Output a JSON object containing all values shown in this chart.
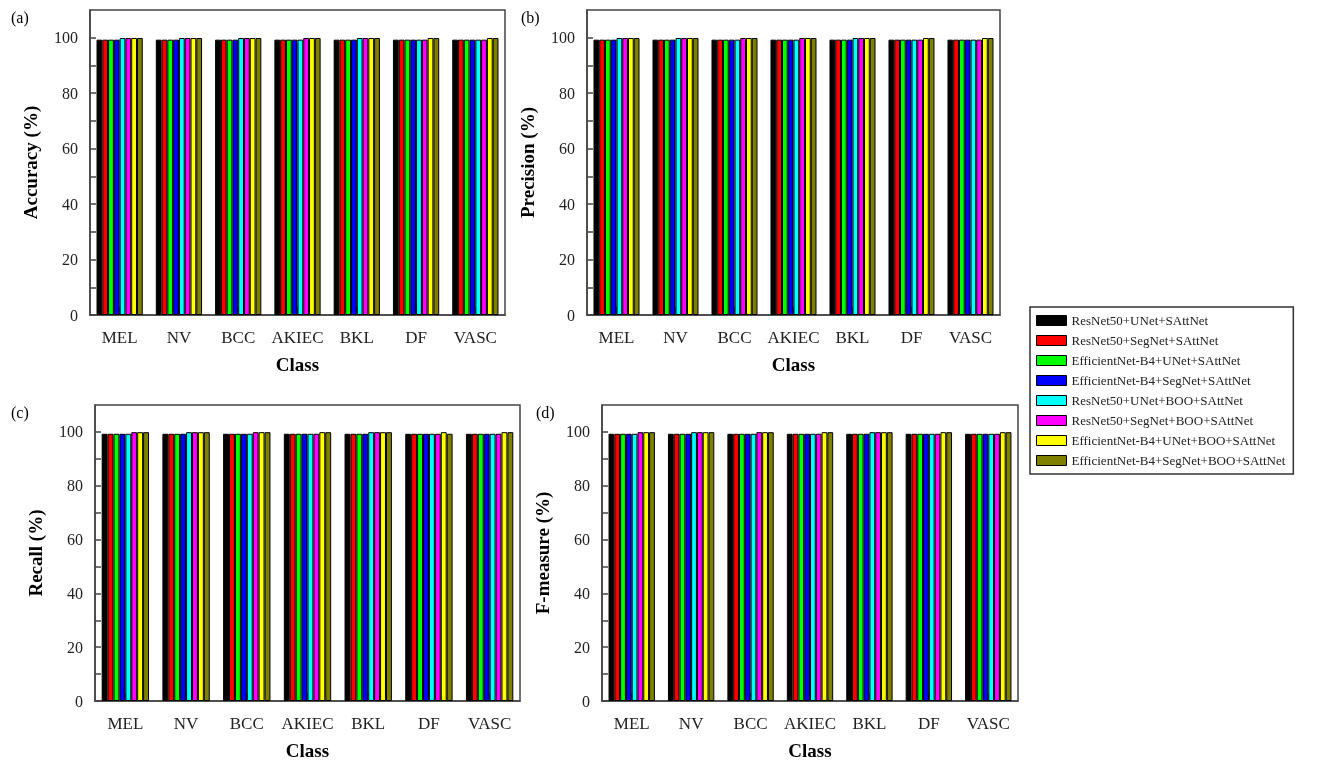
{
  "chart_data": [
    {
      "type": "bar",
      "title": "(a)",
      "xlabel": "Class",
      "ylabel": "Accuracy (%)",
      "categories": [
        "MEL",
        "NV",
        "BCC",
        "AKIEC",
        "BKL",
        "DF",
        "VASC"
      ],
      "ylim": [
        0,
        110
      ],
      "yticks": [
        0,
        {
          "value": 10,
          "label": null
        },
        20,
        {
          "value": 30,
          "label": null
        },
        40,
        {
          "value": 50,
          "label": null
        },
        60,
        {
          "value": 70,
          "label": null
        },
        80,
        {
          "value": 90,
          "label": null
        },
        100
      ],
      "series": [
        {
          "color": "#000000",
          "values": [
            99.3,
            99.3,
            99.3,
            99.3,
            99.3,
            99.3,
            99.3
          ]
        },
        {
          "color": "#ff0000",
          "values": [
            99.3,
            99.3,
            99.3,
            99.3,
            99.3,
            99.3,
            99.3
          ]
        },
        {
          "color": "#00ff00",
          "values": [
            99.3,
            99.3,
            99.3,
            99.3,
            99.3,
            99.3,
            99.3
          ]
        },
        {
          "color": "#0000ff",
          "values": [
            99.3,
            99.3,
            99.3,
            99.3,
            99.3,
            99.3,
            99.3
          ]
        },
        {
          "color": "#00ffff",
          "values": [
            99.9,
            99.9,
            99.9,
            99.3,
            99.9,
            99.3,
            99.3
          ]
        },
        {
          "color": "#ff00ff",
          "values": [
            99.9,
            99.9,
            99.9,
            99.9,
            99.9,
            99.3,
            99.3
          ]
        },
        {
          "color": "#ffff00",
          "values": [
            99.9,
            99.9,
            99.9,
            99.9,
            99.9,
            99.9,
            99.9
          ]
        },
        {
          "color": "#808000",
          "values": [
            99.9,
            99.9,
            99.9,
            99.9,
            99.9,
            99.9,
            99.9
          ]
        }
      ]
    },
    {
      "type": "bar",
      "title": "(b)",
      "xlabel": "Class",
      "ylabel": "Precision (%)",
      "categories": [
        "MEL",
        "NV",
        "BCC",
        "AKIEC",
        "BKL",
        "DF",
        "VASC"
      ],
      "ylim": [
        0,
        110
      ],
      "yticks": [
        0,
        {
          "value": 10,
          "label": null
        },
        20,
        {
          "value": 30,
          "label": null
        },
        40,
        {
          "value": 50,
          "label": null
        },
        60,
        {
          "value": 70,
          "label": null
        },
        80,
        {
          "value": 90,
          "label": null
        },
        100
      ],
      "legend": "right",
      "series": [
        {
          "name": "ResNet50+UNet+SAttNet",
          "color": "#000000",
          "values": [
            99.3,
            99.3,
            99.3,
            99.3,
            99.3,
            99.3,
            99.3
          ]
        },
        {
          "name": "ResNet50+SegNet+SAttNet",
          "color": "#ff0000",
          "values": [
            99.3,
            99.3,
            99.3,
            99.3,
            99.3,
            99.3,
            99.3
          ]
        },
        {
          "name": "EfficientNet-B4+UNet+SAttNet",
          "color": "#00ff00",
          "values": [
            99.3,
            99.3,
            99.3,
            99.3,
            99.3,
            99.3,
            99.3
          ]
        },
        {
          "name": "EfficientNet-B4+SegNet+SAttNet",
          "color": "#0000ff",
          "values": [
            99.3,
            99.3,
            99.3,
            99.3,
            99.3,
            99.3,
            99.3
          ]
        },
        {
          "name": "ResNet50+UNet+BOO+SAttNet",
          "color": "#00ffff",
          "values": [
            99.9,
            99.9,
            99.3,
            99.3,
            99.9,
            99.3,
            99.3
          ]
        },
        {
          "name": "ResNet50+SegNet+BOO+SAttNet",
          "color": "#ff00ff",
          "values": [
            99.9,
            99.9,
            99.9,
            99.9,
            99.9,
            99.3,
            99.3
          ]
        },
        {
          "name": "EfficientNet-B4+UNet+BOO+SAttNet",
          "color": "#ffff00",
          "values": [
            99.9,
            99.9,
            99.9,
            99.9,
            99.9,
            99.9,
            99.9
          ]
        },
        {
          "name": "EfficientNet-B4+SegNet+BOO+SAttNet",
          "color": "#808000",
          "values": [
            99.9,
            99.9,
            99.9,
            99.9,
            99.9,
            99.9,
            99.9
          ]
        }
      ]
    },
    {
      "type": "bar",
      "title": "(c)",
      "xlabel": "Class",
      "ylabel": "Recall (%)",
      "categories": [
        "MEL",
        "NV",
        "BCC",
        "AKIEC",
        "BKL",
        "DF",
        "VASC"
      ],
      "ylim": [
        0,
        110
      ],
      "yticks": [
        0,
        {
          "value": 10,
          "label": null
        },
        20,
        {
          "value": 30,
          "label": null
        },
        40,
        {
          "value": 50,
          "label": null
        },
        60,
        {
          "value": 70,
          "label": null
        },
        80,
        {
          "value": 90,
          "label": null
        },
        100
      ],
      "series": [
        {
          "color": "#000000",
          "values": [
            99.3,
            99.3,
            99.3,
            99.3,
            99.3,
            99.3,
            99.3
          ]
        },
        {
          "color": "#ff0000",
          "values": [
            99.3,
            99.3,
            99.3,
            99.3,
            99.3,
            99.3,
            99.3
          ]
        },
        {
          "color": "#00ff00",
          "values": [
            99.3,
            99.3,
            99.3,
            99.3,
            99.3,
            99.3,
            99.3
          ]
        },
        {
          "color": "#0000ff",
          "values": [
            99.3,
            99.3,
            99.3,
            99.3,
            99.3,
            99.3,
            99.3
          ]
        },
        {
          "color": "#00ffff",
          "values": [
            99.3,
            99.9,
            99.3,
            99.3,
            99.9,
            99.3,
            99.3
          ]
        },
        {
          "color": "#ff00ff",
          "values": [
            99.9,
            99.9,
            99.9,
            99.3,
            99.9,
            99.3,
            99.3
          ]
        },
        {
          "color": "#ffff00",
          "values": [
            99.9,
            99.9,
            99.9,
            99.9,
            99.9,
            99.9,
            99.9
          ]
        },
        {
          "color": "#808000",
          "values": [
            99.9,
            99.9,
            99.9,
            99.9,
            99.9,
            99.3,
            99.9
          ]
        }
      ]
    },
    {
      "type": "bar",
      "title": "(d)",
      "xlabel": "Class",
      "ylabel": "F-measure (%)",
      "categories": [
        "MEL",
        "NV",
        "BCC",
        "AKIEC",
        "BKL",
        "DF",
        "VASC"
      ],
      "ylim": [
        0,
        110
      ],
      "yticks": [
        0,
        {
          "value": 10,
          "label": null
        },
        20,
        {
          "value": 30,
          "label": null
        },
        40,
        {
          "value": 50,
          "label": null
        },
        60,
        {
          "value": 70,
          "label": null
        },
        80,
        {
          "value": 90,
          "label": null
        },
        100
      ],
      "series": [
        {
          "color": "#000000",
          "values": [
            99.3,
            99.3,
            99.3,
            99.3,
            99.3,
            99.3,
            99.3
          ]
        },
        {
          "color": "#ff0000",
          "values": [
            99.3,
            99.3,
            99.3,
            99.3,
            99.3,
            99.3,
            99.3
          ]
        },
        {
          "color": "#00ff00",
          "values": [
            99.3,
            99.3,
            99.3,
            99.3,
            99.3,
            99.3,
            99.3
          ]
        },
        {
          "color": "#0000ff",
          "values": [
            99.3,
            99.3,
            99.3,
            99.3,
            99.3,
            99.3,
            99.3
          ]
        },
        {
          "color": "#00ffff",
          "values": [
            99.3,
            99.9,
            99.3,
            99.3,
            99.9,
            99.3,
            99.3
          ]
        },
        {
          "color": "#ff00ff",
          "values": [
            99.9,
            99.9,
            99.9,
            99.3,
            99.9,
            99.3,
            99.3
          ]
        },
        {
          "color": "#ffff00",
          "values": [
            99.9,
            99.9,
            99.9,
            99.9,
            99.9,
            99.9,
            99.9
          ]
        },
        {
          "color": "#808000",
          "values": [
            99.9,
            99.9,
            99.9,
            99.9,
            99.9,
            99.9,
            99.9
          ]
        }
      ]
    }
  ]
}
